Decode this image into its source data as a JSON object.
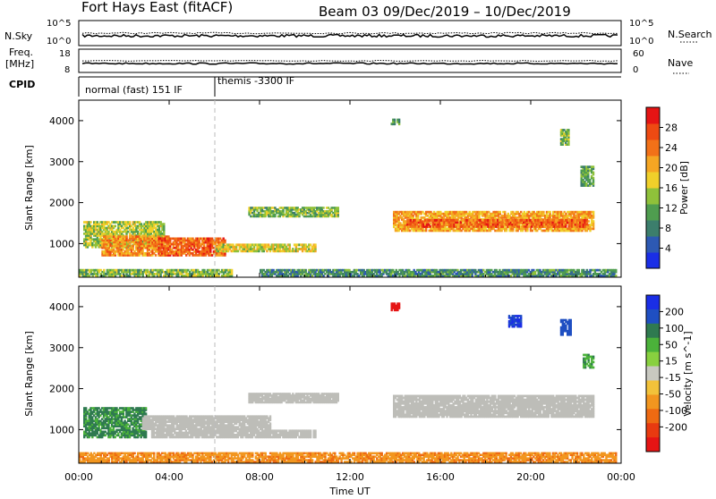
{
  "header": {
    "station": "Fort Hays East (fitACF)",
    "beam_info": "Beam 03  09/Dec/2019 – 10/Dec/2019"
  },
  "strip_labels": {
    "nsky": "N.Sky",
    "nsky_tick_top": "10^5",
    "nsky_tick_bottom": "10^0",
    "nsearch": "N.Search",
    "nsearch_tick_top": "10^5",
    "nsearch_tick_bottom": "10^0",
    "freq_line1": "Freq.",
    "freq_line2": "[MHz]",
    "freq_tick_top": "18",
    "freq_tick_bottom": "8",
    "nave": "Nave",
    "nave_tick_top": "60",
    "nave_tick_bottom": "0",
    "cpid": "CPID",
    "cpid_mode1": "normal (fast) 151 IF",
    "cpid_mode2": "themis -3300 IF"
  },
  "colors": {
    "power_scale": [
      "#1a2ee6",
      "#2d59b3",
      "#3c7e6c",
      "#4f9d4f",
      "#8fc13a",
      "#f0d02a",
      "#f5a623",
      "#f27118",
      "#ee4a12",
      "#e51414"
    ],
    "velocity_scale": [
      "#1a2ee6",
      "#1f4fc2",
      "#2f7a50",
      "#4bb23a",
      "#88d03f",
      "#c8c8c0",
      "#f2c23a",
      "#f2961f",
      "#ee6a12",
      "#e83a10",
      "#e51414"
    ],
    "ground_scatter": "#bdbdb8"
  },
  "chart_data": [
    {
      "type": "heatmap",
      "name": "power-panel",
      "ylabel": "Slant Range [km]",
      "xlabel": "",
      "y_ticks": [
        "1000",
        "2000",
        "3000",
        "4000"
      ],
      "x_range_hours": [
        0,
        24
      ],
      "y_range_km": [
        180,
        4500
      ],
      "colorbar": {
        "label": "Power [dB]",
        "ticks": [
          "4",
          "8",
          "12",
          "16",
          "20",
          "24",
          "28"
        ],
        "range": [
          0,
          30
        ]
      },
      "regions": [
        {
          "t0": 0.0,
          "t1": 6.8,
          "r0": 200,
          "r1": 380,
          "level": 12
        },
        {
          "t0": 0.2,
          "t1": 3.8,
          "r0": 900,
          "r1": 1550,
          "level": 14
        },
        {
          "t0": 1.0,
          "t1": 4.0,
          "r0": 700,
          "r1": 1200,
          "level": 22
        },
        {
          "t0": 3.5,
          "t1": 6.5,
          "r0": 700,
          "r1": 1150,
          "level": 25
        },
        {
          "t0": 6.0,
          "t1": 10.5,
          "r0": 800,
          "r1": 1000,
          "level": 16
        },
        {
          "t0": 7.5,
          "t1": 11.5,
          "r0": 1650,
          "r1": 1900,
          "level": 12
        },
        {
          "t0": 13.9,
          "t1": 22.8,
          "r0": 1300,
          "r1": 1800,
          "level": 20
        },
        {
          "t0": 14.5,
          "t1": 22.5,
          "r0": 1400,
          "r1": 1600,
          "level": 25
        },
        {
          "t0": 13.8,
          "t1": 14.2,
          "r0": 3900,
          "r1": 4050,
          "level": 10
        },
        {
          "t0": 21.3,
          "t1": 21.7,
          "r0": 3400,
          "r1": 3800,
          "level": 12
        },
        {
          "t0": 22.2,
          "t1": 22.8,
          "r0": 2400,
          "r1": 2900,
          "level": 10
        },
        {
          "t0": 8.0,
          "t1": 23.8,
          "r0": 200,
          "r1": 380,
          "level": 8
        }
      ]
    },
    {
      "type": "heatmap",
      "name": "velocity-panel",
      "ylabel": "Slant Range [km]",
      "xlabel": "Time UT",
      "x_ticks": [
        "00:00",
        "04:00",
        "08:00",
        "12:00",
        "16:00",
        "20:00",
        "00:00"
      ],
      "y_ticks": [
        "1000",
        "2000",
        "3000",
        "4000"
      ],
      "x_range_hours": [
        0,
        24
      ],
      "y_range_km": [
        180,
        4500
      ],
      "colorbar": {
        "label": "Velocity [m s^-1]",
        "ticks": [
          "200",
          "100",
          "50",
          "15",
          "-15",
          "-50",
          "-100",
          "-200"
        ],
        "range": [
          -250,
          250
        ]
      },
      "regions": [
        {
          "t0": 0.2,
          "t1": 3.0,
          "r0": 800,
          "r1": 1550,
          "kind": "v",
          "value": 60
        },
        {
          "t0": 2.8,
          "t1": 8.5,
          "r0": 1000,
          "r1": 1350,
          "kind": "ground"
        },
        {
          "t0": 3.2,
          "t1": 10.5,
          "r0": 800,
          "r1": 1000,
          "kind": "ground"
        },
        {
          "t0": 7.5,
          "t1": 11.5,
          "r0": 1650,
          "r1": 1900,
          "kind": "ground"
        },
        {
          "t0": 13.9,
          "t1": 22.8,
          "r0": 1300,
          "r1": 1850,
          "kind": "ground"
        },
        {
          "t0": 13.8,
          "t1": 14.2,
          "r0": 3900,
          "r1": 4100,
          "kind": "v",
          "value": -220
        },
        {
          "t0": 19.0,
          "t1": 19.6,
          "r0": 3500,
          "r1": 3800,
          "kind": "v",
          "value": 200
        },
        {
          "t0": 21.3,
          "t1": 21.8,
          "r0": 3300,
          "r1": 3700,
          "kind": "v",
          "value": 180
        },
        {
          "t0": 22.3,
          "t1": 22.8,
          "r0": 2500,
          "r1": 2850,
          "kind": "v",
          "value": 40
        },
        {
          "t0": 0.0,
          "t1": 23.8,
          "r0": 200,
          "r1": 450,
          "kind": "v",
          "value": -40
        }
      ]
    }
  ]
}
